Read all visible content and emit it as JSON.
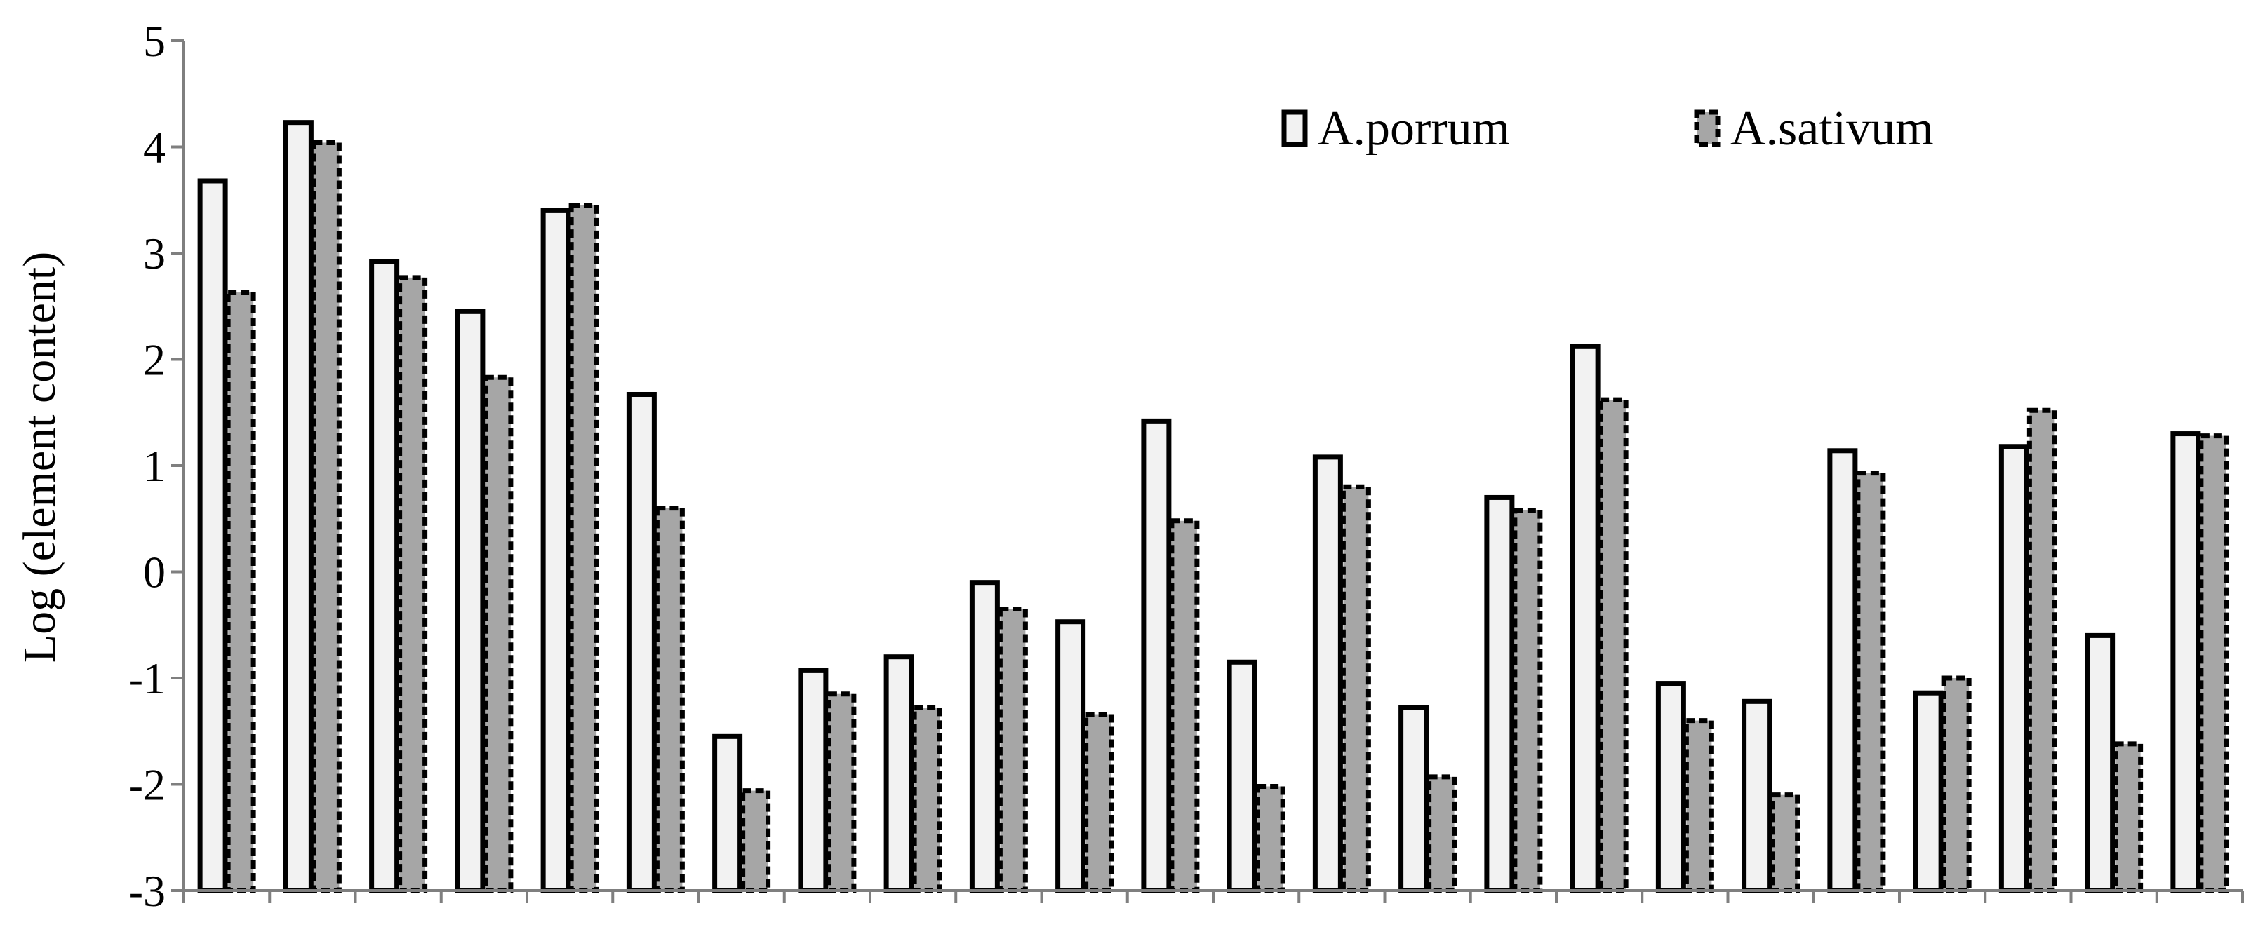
{
  "chart_data": {
    "type": "bar",
    "title": "",
    "xlabel": "",
    "ylabel": "Log (element content)",
    "ylim": [
      -3,
      5
    ],
    "yticks": [
      "5",
      "4",
      "3",
      "2",
      "1",
      "0",
      "-1",
      "-2",
      "-3"
    ],
    "grid": false,
    "legend_position": "top-right",
    "categories": [
      "",
      "",
      "",
      "",
      "",
      "",
      "",
      "",
      "",
      "",
      "",
      "",
      "",
      "",
      "",
      "",
      "",
      "",
      "",
      "",
      "",
      "",
      "",
      ""
    ],
    "series": [
      {
        "name": "A.porrum",
        "fill": "#f2f2f2",
        "stroke": "#000000",
        "dashed": false,
        "values": [
          3.68,
          4.23,
          2.92,
          2.45,
          3.4,
          1.67,
          -1.55,
          -0.93,
          -0.8,
          -0.1,
          -0.47,
          1.42,
          -0.85,
          1.08,
          -1.28,
          0.7,
          2.12,
          -1.05,
          -1.22,
          1.14,
          -1.14,
          1.18,
          -0.6,
          1.3
        ]
      },
      {
        "name": "A.sativum",
        "fill": "#a6a6a6",
        "stroke": "#000000",
        "dashed": true,
        "values": [
          2.63,
          4.04,
          2.77,
          1.83,
          3.45,
          0.6,
          -2.06,
          -1.15,
          -1.28,
          -0.35,
          -1.34,
          0.48,
          -2.02,
          0.8,
          -1.93,
          0.58,
          1.62,
          -1.4,
          -2.1,
          0.93,
          -1.0,
          1.52,
          -1.62,
          1.28
        ]
      }
    ]
  }
}
